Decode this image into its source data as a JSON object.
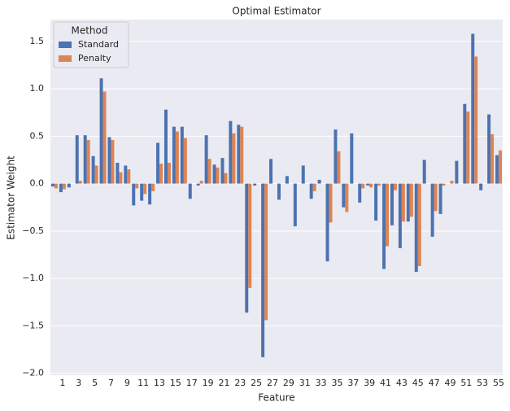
{
  "chart_data": {
    "type": "bar",
    "title": "Optimal Estimator",
    "x_label": "Feature",
    "y_label": "Estimator Weight",
    "categories": [
      null,
      "1",
      null,
      "3",
      null,
      "5",
      null,
      "7",
      null,
      "9",
      null,
      "11",
      null,
      "13",
      null,
      "15",
      null,
      "17",
      null,
      "19",
      null,
      "21",
      null,
      "23",
      null,
      "25",
      null,
      "27",
      null,
      "29",
      null,
      "31",
      null,
      "33",
      null,
      "35",
      null,
      "37",
      null,
      "39",
      null,
      "41",
      null,
      "43",
      null,
      "45",
      null,
      "47",
      null,
      "49",
      null,
      "51",
      null,
      "53",
      null,
      "55"
    ],
    "series": [
      {
        "name": "Standard",
        "color": "#4c72b0",
        "values": [
          -0.03,
          -0.09,
          -0.04,
          0.51,
          0.51,
          0.29,
          1.11,
          0.49,
          0.22,
          0.19,
          -0.23,
          -0.18,
          -0.22,
          0.43,
          0.78,
          0.6,
          0.6,
          -0.16,
          -0.02,
          0.51,
          0.2,
          0.27,
          0.66,
          0.62,
          -1.36,
          -0.02,
          -1.83,
          0.26,
          -0.17,
          0.08,
          -0.45,
          0.19,
          -0.16,
          0.04,
          -0.82,
          0.57,
          -0.25,
          0.53,
          -0.2,
          -0.02,
          -0.39,
          -0.9,
          -0.44,
          -0.68,
          -0.4,
          -0.93,
          0.25,
          -0.56,
          -0.32,
          0.0,
          0.24,
          0.84,
          1.58,
          -0.07,
          0.73,
          0.3
        ]
      },
      {
        "name": "Penalty",
        "color": "#dd8452",
        "values": [
          -0.05,
          -0.06,
          0.0,
          0.03,
          0.46,
          0.19,
          0.97,
          0.46,
          0.12,
          0.15,
          -0.05,
          -0.11,
          -0.08,
          0.21,
          0.22,
          0.55,
          0.48,
          0.0,
          0.03,
          0.26,
          0.17,
          0.11,
          0.53,
          0.6,
          -1.1,
          0.0,
          -1.44,
          0.0,
          0.0,
          0.0,
          0.0,
          0.0,
          -0.08,
          0.0,
          -0.41,
          0.34,
          -0.3,
          0.0,
          -0.05,
          -0.04,
          -0.02,
          -0.66,
          -0.07,
          -0.4,
          -0.35,
          -0.87,
          0.0,
          -0.29,
          -0.02,
          0.03,
          0.0,
          0.76,
          1.34,
          0.0,
          0.52,
          0.35
        ]
      }
    ],
    "legend_title": "Method",
    "legend": "upper left",
    "ylim": [
      -2.02,
      1.73
    ],
    "yticks": [
      {
        "value": -2,
        "label": "−2.0"
      },
      {
        "value": -1.5,
        "label": "−1.5"
      },
      {
        "value": -1,
        "label": "−1.0"
      },
      {
        "value": -0.5,
        "label": "−0.5"
      },
      {
        "value": 0,
        "label": "0.0"
      },
      0.5,
      {
        "value": 1,
        "label": "1.0"
      },
      1.5
    ],
    "grid": true
  }
}
